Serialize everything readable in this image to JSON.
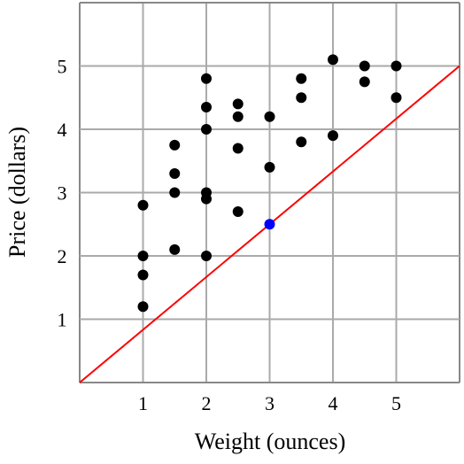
{
  "chart_data": {
    "type": "scatter",
    "xlabel": "Weight (ounces)",
    "ylabel": "Price (dollars)",
    "xlim": [
      0,
      6
    ],
    "ylim": [
      0,
      6
    ],
    "x_ticks": [
      "1",
      "2",
      "3",
      "4",
      "5"
    ],
    "y_ticks": [
      "1",
      "2",
      "3",
      "4",
      "5"
    ],
    "grid": true,
    "points": [
      {
        "x": 1,
        "y": 2.8
      },
      {
        "x": 1,
        "y": 2.0
      },
      {
        "x": 1,
        "y": 1.7
      },
      {
        "x": 1,
        "y": 1.2
      },
      {
        "x": 1.5,
        "y": 3.75
      },
      {
        "x": 1.5,
        "y": 3.3
      },
      {
        "x": 1.5,
        "y": 3.0
      },
      {
        "x": 1.5,
        "y": 2.1
      },
      {
        "x": 2,
        "y": 4.8
      },
      {
        "x": 2,
        "y": 4.35
      },
      {
        "x": 2,
        "y": 4.0
      },
      {
        "x": 2,
        "y": 3.0
      },
      {
        "x": 2,
        "y": 2.9
      },
      {
        "x": 2,
        "y": 2.0
      },
      {
        "x": 2.5,
        "y": 4.4
      },
      {
        "x": 2.5,
        "y": 4.2
      },
      {
        "x": 2.5,
        "y": 3.7
      },
      {
        "x": 2.5,
        "y": 2.7
      },
      {
        "x": 3,
        "y": 4.2
      },
      {
        "x": 3,
        "y": 3.4
      },
      {
        "x": 3.5,
        "y": 4.8
      },
      {
        "x": 3.5,
        "y": 4.5
      },
      {
        "x": 3.5,
        "y": 3.8
      },
      {
        "x": 4,
        "y": 5.1
      },
      {
        "x": 4,
        "y": 3.9
      },
      {
        "x": 4.5,
        "y": 5.0
      },
      {
        "x": 4.5,
        "y": 4.75
      },
      {
        "x": 5,
        "y": 5.0
      },
      {
        "x": 5,
        "y": 4.5
      }
    ],
    "highlight_point": {
      "x": 3,
      "y": 2.5
    },
    "line": {
      "x1": 0,
      "y1": 0,
      "x2": 6,
      "y2": 5
    },
    "colors": {
      "point": "#000000",
      "highlight": "#0000ff",
      "line": "#ff0000",
      "grid": "#aaaaaa",
      "frame": "#888888"
    }
  }
}
